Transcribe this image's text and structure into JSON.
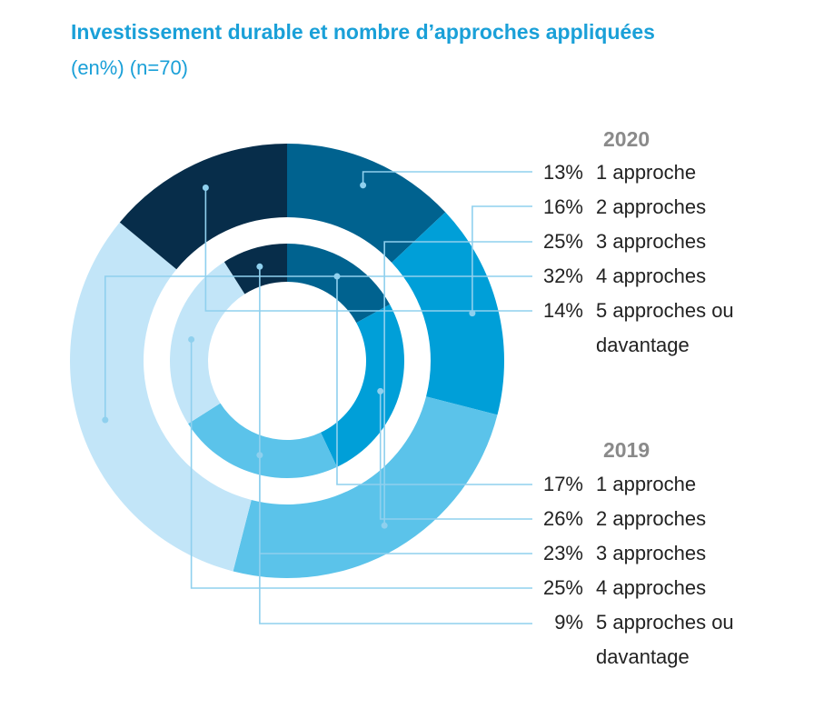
{
  "title": "Investissement durable et nombre d’approches appliquées",
  "subtitle": "(en%) (n=70)",
  "colors": {
    "title": "#1aa0d8",
    "leader": "#8fd0ee",
    "slices": [
      "#00628f",
      "#009fd8",
      "#5bc3ea",
      "#c2e5f8",
      "#072d4a"
    ]
  },
  "chart_data": {
    "type": "pie",
    "variant": "nested-donut",
    "categories": [
      "1 approche",
      "2 approches",
      "3 approches",
      "4 approches",
      "5 approches ou davantage"
    ],
    "series": [
      {
        "name": "2020",
        "ring": "outer",
        "values": [
          13,
          16,
          25,
          32,
          14
        ]
      },
      {
        "name": "2019",
        "ring": "inner",
        "values": [
          17,
          26,
          23,
          25,
          9
        ]
      }
    ]
  },
  "legend": {
    "groups": [
      {
        "year": "2020",
        "items": [
          {
            "pct": "13%",
            "label": "1 approche"
          },
          {
            "pct": "16%",
            "label": "2 approches"
          },
          {
            "pct": "25%",
            "label": "3 approches"
          },
          {
            "pct": "32%",
            "label": "4 approches"
          },
          {
            "pct": "14%",
            "label": "5 approches ou davantage"
          }
        ]
      },
      {
        "year": "2019",
        "items": [
          {
            "pct": "17%",
            "label": "1 approche"
          },
          {
            "pct": "26%",
            "label": "2 approches"
          },
          {
            "pct": "23%",
            "label": "3 approches"
          },
          {
            "pct": "25%",
            "label": "4 approches"
          },
          {
            "pct": "9%",
            "label": "5 approches ou davantage"
          }
        ]
      }
    ]
  }
}
